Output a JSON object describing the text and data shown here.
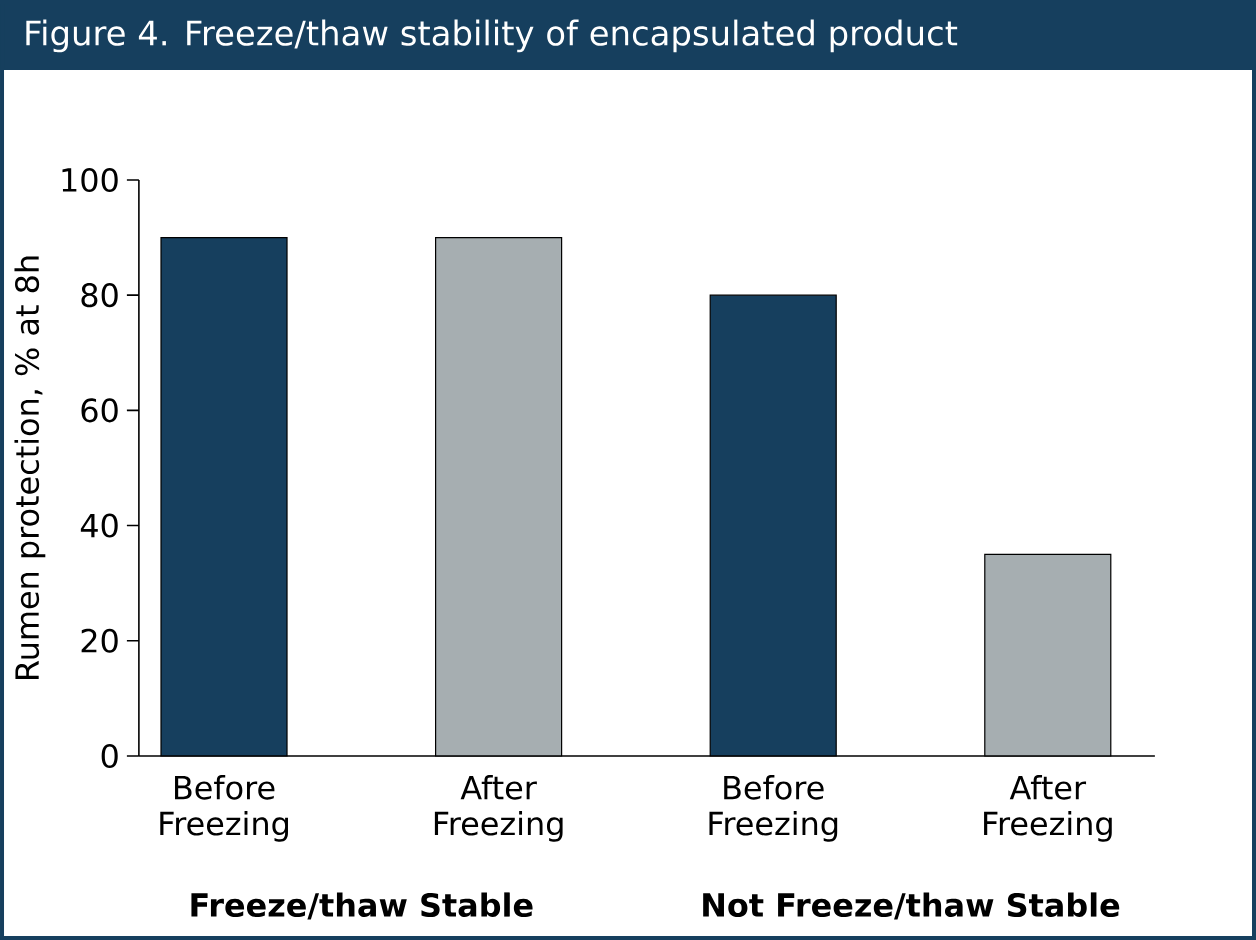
{
  "chart_data": {
    "type": "bar",
    "title": "Figure 4. Freeze/thaw stability of encapsulated product",
    "ylabel": "Rumen protection, % at 8h",
    "categories": [
      "Before Freezing",
      "After Freezing",
      "Before Freezing",
      "After Freezing"
    ],
    "values": [
      90,
      90,
      80,
      35
    ],
    "colors": [
      "#163f5e",
      "#a6aeb1",
      "#163f5e",
      "#a6aeb1"
    ],
    "ylim": [
      0,
      100
    ],
    "yticks": [
      0,
      20,
      40,
      60,
      80,
      100
    ],
    "annotations": [
      "Freeze/thaw Stable",
      "Not Freeze/thaw Stable"
    ]
  }
}
